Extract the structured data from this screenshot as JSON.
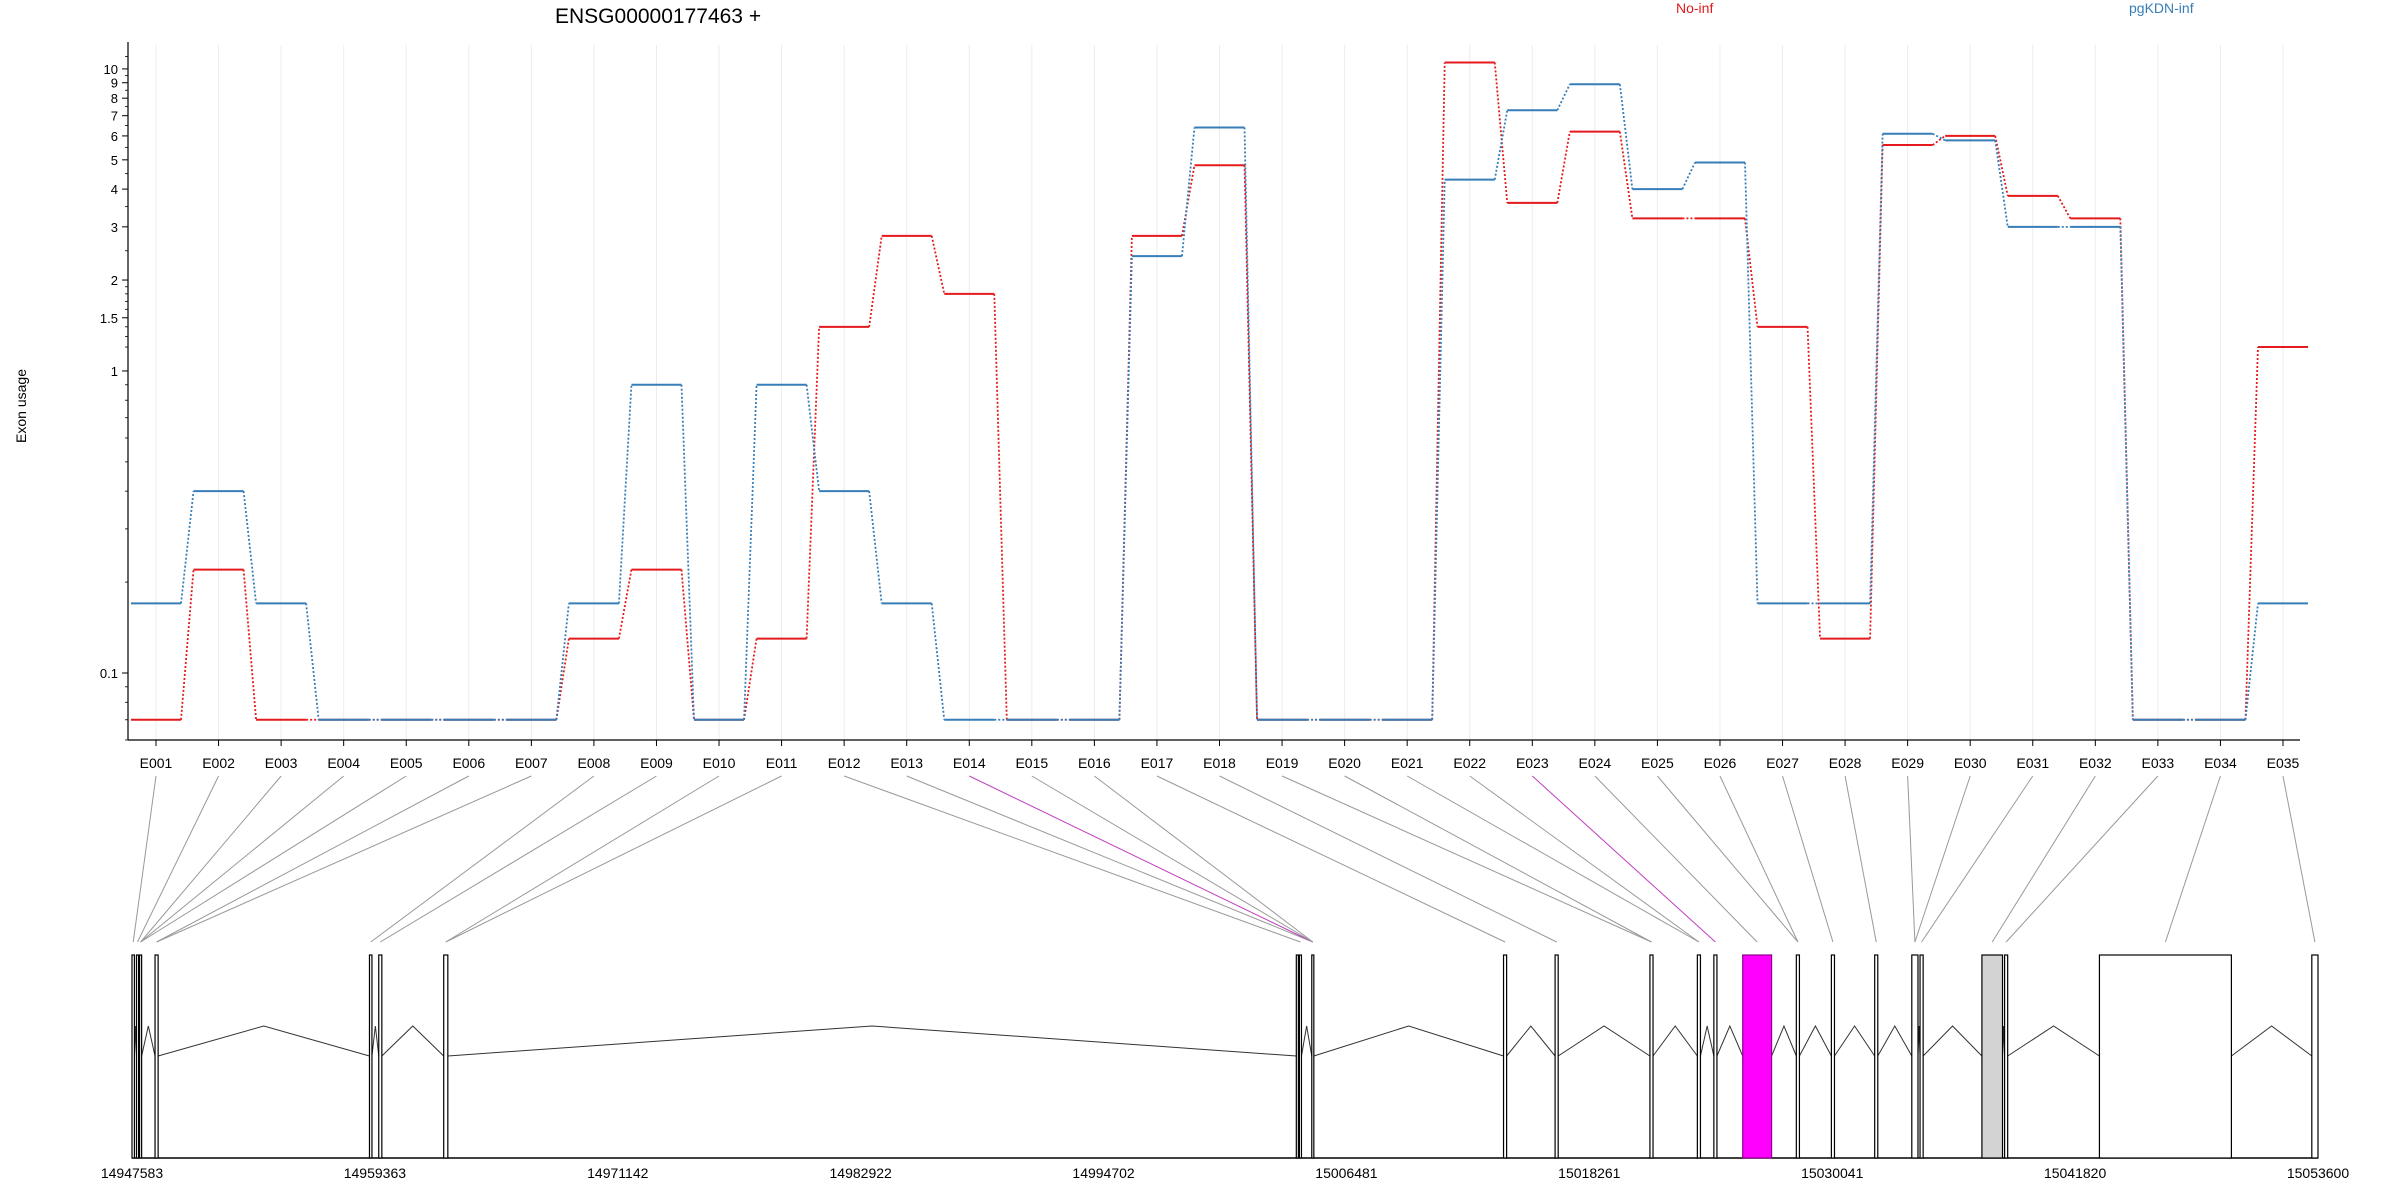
{
  "chart_data": {
    "type": "line",
    "title": "ENSG00000177463 +",
    "ylabel": "Exon usage",
    "yscale": "log",
    "ylim": [
      0.06,
      12
    ],
    "y_ticks": [
      {
        "value": 0.1,
        "label": "0.1"
      },
      {
        "value": 1,
        "label": "1"
      },
      {
        "value": 1.5,
        "label": "1.5"
      },
      {
        "value": 2,
        "label": "2"
      },
      {
        "value": 3,
        "label": "3"
      },
      {
        "value": 4,
        "label": "4"
      },
      {
        "value": 5,
        "label": "5"
      },
      {
        "value": 6,
        "label": "6"
      },
      {
        "value": 7,
        "label": "7"
      },
      {
        "value": 8,
        "label": "8"
      },
      {
        "value": 9,
        "label": "9"
      },
      {
        "value": 10,
        "label": "10"
      }
    ],
    "grid": "vertical",
    "legend_position": "top",
    "categories": [
      "E001",
      "E002",
      "E003",
      "E004",
      "E005",
      "E006",
      "E007",
      "E008",
      "E009",
      "E010",
      "E011",
      "E012",
      "E013",
      "E014",
      "E015",
      "E016",
      "E017",
      "E018",
      "E019",
      "E020",
      "E021",
      "E022",
      "E023",
      "E024",
      "E025",
      "E026",
      "E027",
      "E028",
      "E029",
      "E030",
      "E031",
      "E032",
      "E033",
      "E034",
      "E035"
    ],
    "series": [
      {
        "name": "No-inf",
        "color": "#e41a1c",
        "values": [
          0.07,
          0.22,
          0.07,
          0.07,
          0.07,
          0.07,
          0.07,
          0.13,
          0.22,
          0.07,
          0.13,
          1.4,
          2.8,
          1.8,
          0.07,
          0.07,
          2.8,
          4.8,
          0.07,
          0.07,
          0.07,
          10.5,
          3.6,
          6.2,
          3.2,
          3.2,
          1.4,
          0.13,
          5.6,
          6.0,
          3.8,
          3.2,
          0.07,
          0.07,
          1.2
        ]
      },
      {
        "name": "pgKDN-inf",
        "color": "#377eb8",
        "values": [
          0.17,
          0.4,
          0.17,
          0.07,
          0.07,
          0.07,
          0.07,
          0.17,
          0.9,
          0.07,
          0.9,
          0.4,
          0.17,
          0.07,
          0.07,
          0.07,
          2.4,
          6.4,
          0.07,
          0.07,
          0.07,
          4.3,
          7.3,
          8.9,
          4.0,
          4.9,
          0.17,
          0.17,
          6.1,
          5.8,
          3.0,
          3.0,
          0.07,
          0.07,
          0.17
        ]
      }
    ],
    "highlighted_exons": [
      "E014",
      "E023"
    ],
    "gene_model": {
      "coord_range": [
        14947583,
        15053600
      ],
      "axis_labels": [
        "14947583",
        "14959363",
        "14971142",
        "14982922",
        "14994702",
        "15006481",
        "15018261",
        "15030041",
        "15041820",
        "15053600"
      ],
      "exons": [
        {
          "start": 14947583,
          "end": 14947700
        },
        {
          "start": 14947800,
          "end": 14947900
        },
        {
          "start": 14947950,
          "end": 14948050
        },
        {
          "start": 14948700,
          "end": 14948850
        },
        {
          "start": 14959100,
          "end": 14959220
        },
        {
          "start": 14959550,
          "end": 14959700
        },
        {
          "start": 14962700,
          "end": 14962900
        },
        {
          "start": 15004050,
          "end": 15004150
        },
        {
          "start": 15004200,
          "end": 15004300
        },
        {
          "start": 15004800,
          "end": 15004900
        },
        {
          "start": 15014100,
          "end": 15014250
        },
        {
          "start": 15016600,
          "end": 15016750
        },
        {
          "start": 15021200,
          "end": 15021350
        },
        {
          "start": 15023500,
          "end": 15023650
        },
        {
          "start": 15024300,
          "end": 15024450
        },
        {
          "start": 15025700,
          "end": 15027100
        },
        {
          "start": 15028300,
          "end": 15028450
        },
        {
          "start": 15030000,
          "end": 15030150
        },
        {
          "start": 15032100,
          "end": 15032250
        },
        {
          "start": 15033900,
          "end": 15034200
        },
        {
          "start": 15034300,
          "end": 15034450
        },
        {
          "start": 15037300,
          "end": 15038300
        },
        {
          "start": 15038400,
          "end": 15038550
        },
        {
          "start": 15043000,
          "end": 15049400
        },
        {
          "start": 15053300,
          "end": 15053600
        }
      ],
      "highlighted_exon_index": 15,
      "shaded_exon_index": 21,
      "connector_targets": [
        0,
        1,
        2,
        2,
        2,
        3,
        3,
        4,
        5,
        6,
        6,
        8,
        9,
        9,
        9,
        9,
        10,
        11,
        12,
        12,
        13,
        13,
        14,
        15,
        16,
        16,
        17,
        18,
        19,
        19,
        20,
        21,
        22,
        23,
        24
      ]
    }
  }
}
